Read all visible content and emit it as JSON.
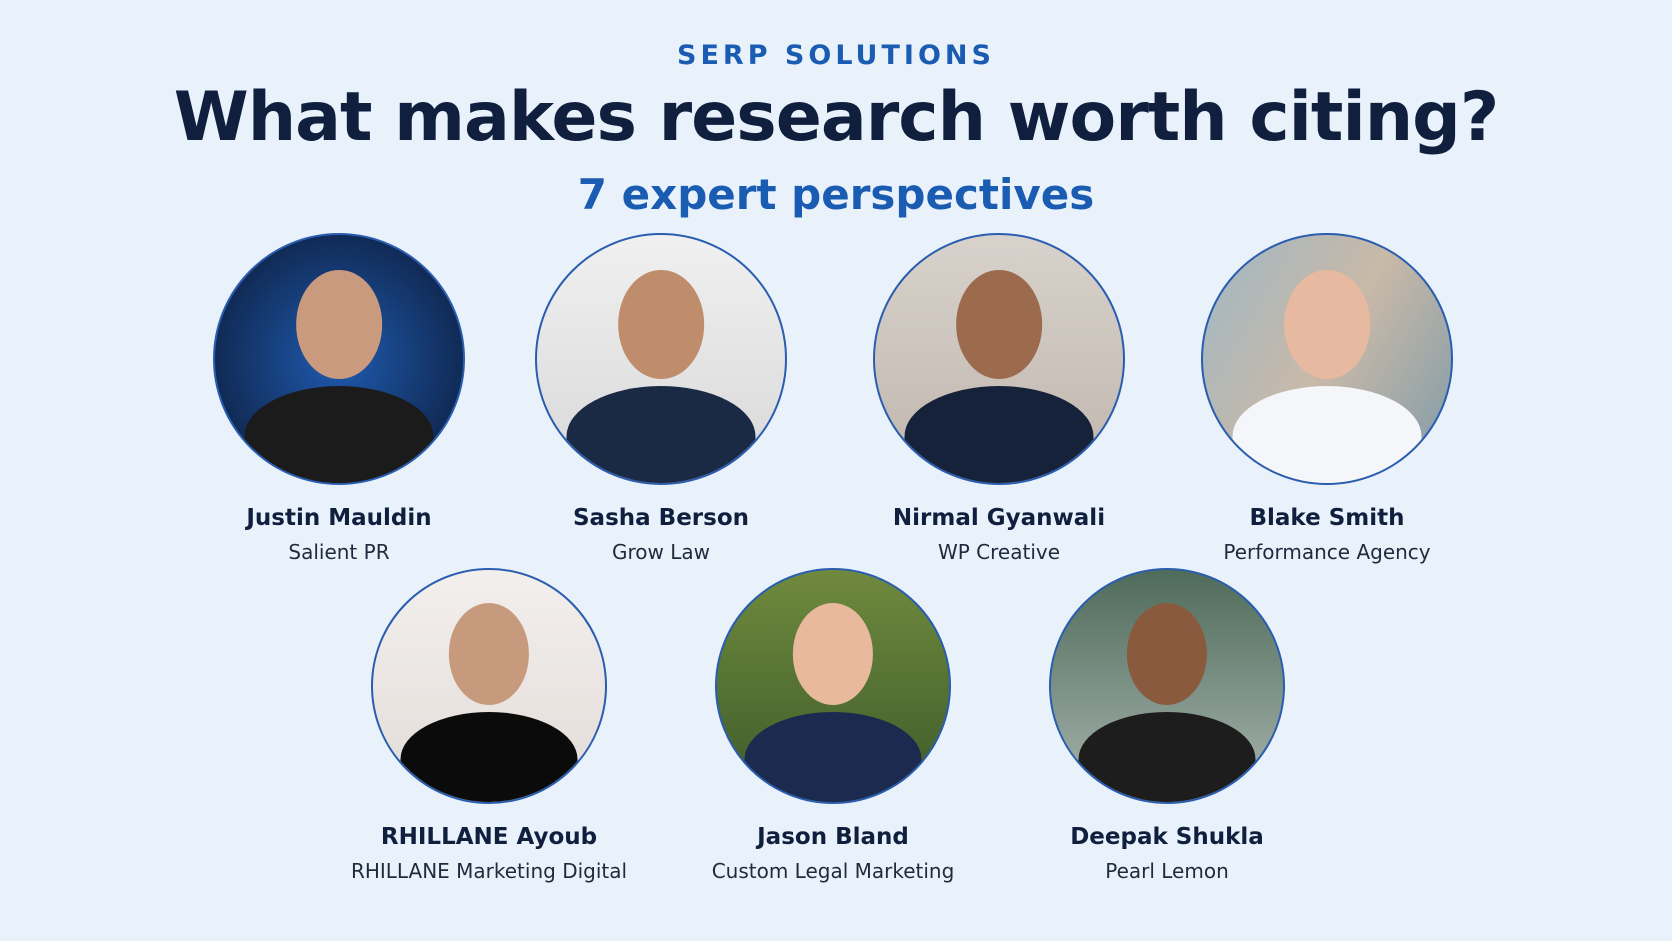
{
  "header": {
    "brand": "SERP SOLUTIONS",
    "title": "What makes research worth citing?",
    "subtitle": "7 expert perspectives"
  },
  "experts": [
    {
      "name": "Justin Mauldin",
      "company": "Salient PR"
    },
    {
      "name": "Sasha Berson",
      "company": "Grow Law"
    },
    {
      "name": "Nirmal Gyanwali",
      "company": "WP Creative"
    },
    {
      "name": "Blake Smith",
      "company": "Performance Agency"
    },
    {
      "name": "RHILLANE Ayoub",
      "company": "RHILLANE Marketing Digital"
    },
    {
      "name": "Jason Bland",
      "company": "Custom Legal Marketing"
    },
    {
      "name": "Deepak Shukla",
      "company": "Pearl Lemon"
    }
  ]
}
